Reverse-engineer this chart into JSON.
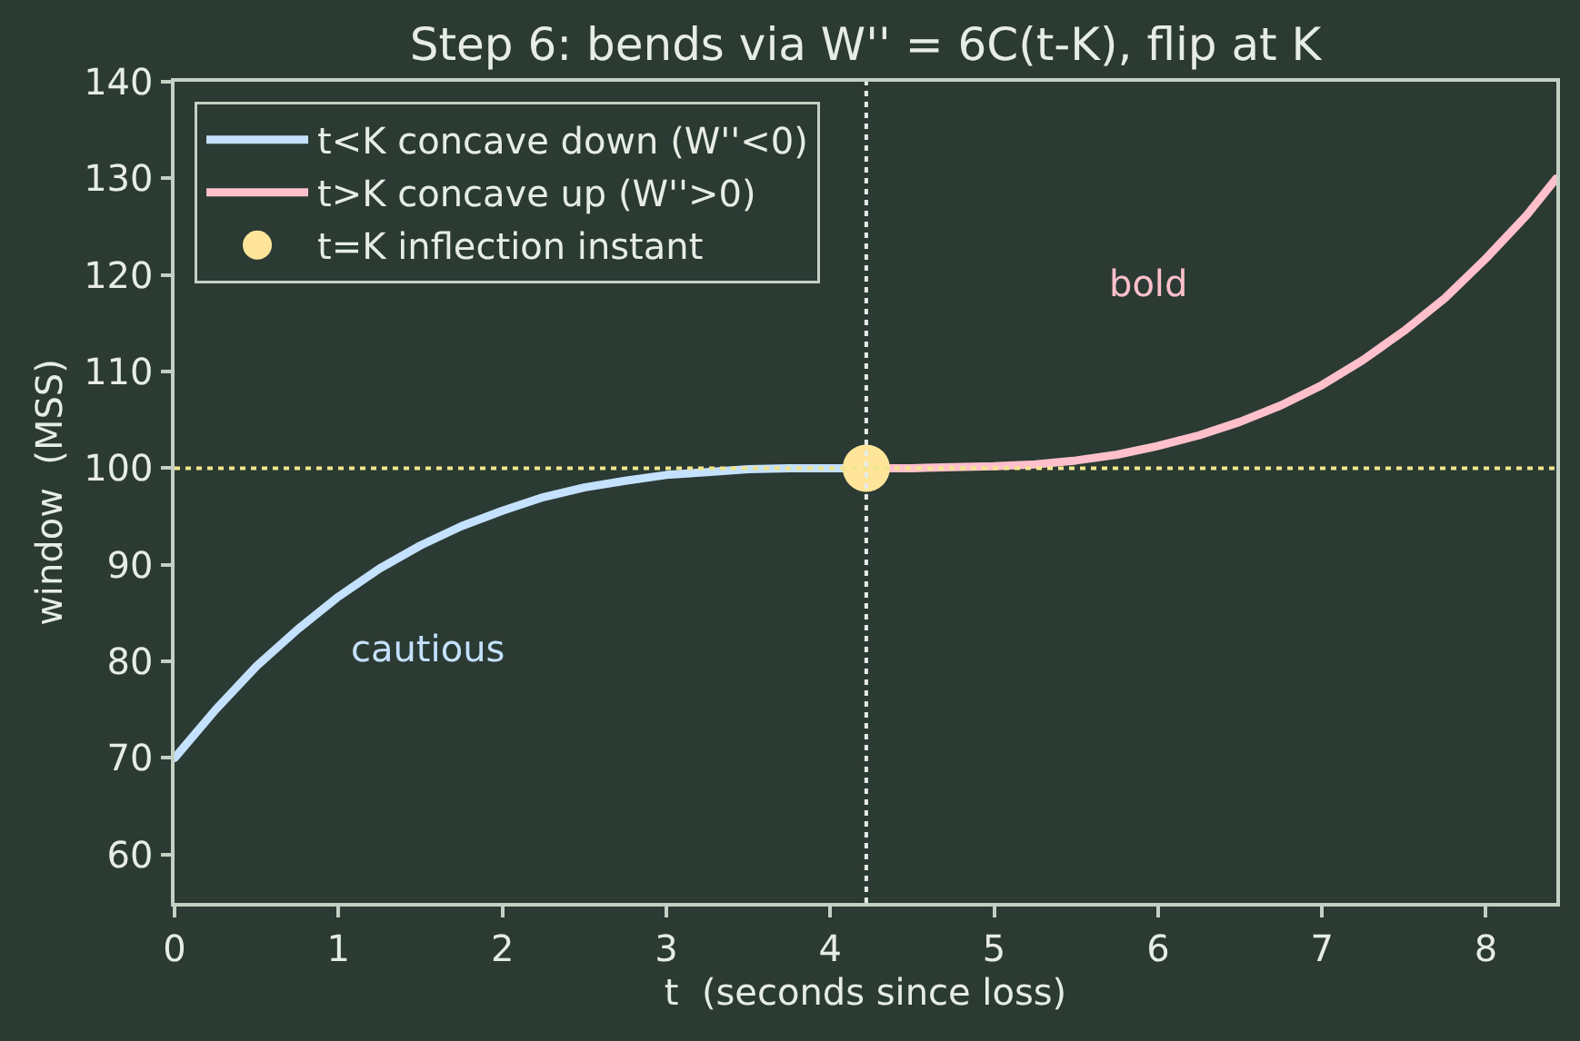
{
  "chart_data": {
    "type": "line",
    "title": "Step 6: bends via W'' = 6C(t-K), flip at K",
    "xlabel": "t  (seconds since loss)",
    "ylabel": "window  (MSS)",
    "series": [
      {
        "name": "t<K concave down (W''<0)",
        "color": "#c4e1ff",
        "x": [
          0,
          0.25,
          0.5,
          0.75,
          1,
          1.25,
          1.5,
          1.75,
          2,
          2.25,
          2.5,
          2.75,
          3,
          3.25,
          3.5,
          3.75,
          4,
          4.22
        ],
        "values": [
          70.0,
          75.0,
          79.5,
          83.3,
          86.7,
          89.6,
          92.0,
          94.0,
          95.6,
          97.0,
          98.0,
          98.7,
          99.3,
          99.6,
          99.9,
          100.0,
          100.0,
          100.0
        ]
      },
      {
        "name": "t>K concave up (W''>0)",
        "color": "#ffc0cb",
        "x": [
          4.22,
          4.5,
          4.75,
          5,
          5.25,
          5.5,
          5.75,
          6,
          6.25,
          6.5,
          6.75,
          7,
          7.25,
          7.5,
          7.75,
          8,
          8.25,
          8.43
        ],
        "values": [
          100.0,
          100.0,
          100.1,
          100.2,
          100.4,
          100.8,
          101.4,
          102.3,
          103.4,
          104.8,
          106.5,
          108.6,
          111.2,
          114.2,
          117.6,
          121.7,
          126.2,
          130.0
        ]
      },
      {
        "name": "t=K inflection instant",
        "color": "#ffe599",
        "type": "scatter",
        "marker": "circle",
        "x": [
          4.22
        ],
        "values": [
          100
        ]
      }
    ],
    "annotations": [
      "cautious",
      "bold"
    ],
    "ref_lines": [
      {
        "axis": "y",
        "value": 100,
        "color": "#f0e68c",
        "line_style": "dotted"
      },
      {
        "axis": "x",
        "value": 4.22,
        "color": "#e8ece8",
        "line_style": "dotted"
      }
    ],
    "xlim": [
      0,
      8.43
    ],
    "xticks": [
      0,
      1,
      2,
      3,
      4,
      5,
      6,
      7,
      8
    ],
    "ylim": [
      55,
      140
    ],
    "yticks": [
      60,
      70,
      80,
      90,
      100,
      110,
      120,
      130,
      140
    ],
    "grid": false,
    "legend": "top left",
    "line_style": "solid"
  }
}
